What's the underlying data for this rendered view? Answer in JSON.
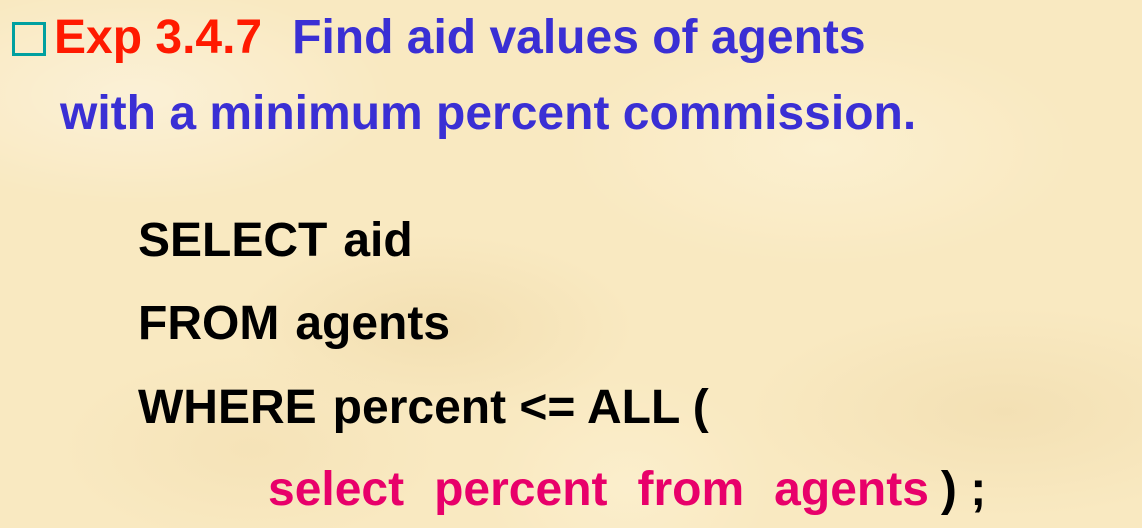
{
  "title": {
    "label": "Exp 3.4.7",
    "line1": "Find aid values of agents",
    "line2": "with a minimum percent commission."
  },
  "sql": {
    "line1_keyword": "SELECT",
    "line1_rest": "aid",
    "line2_keyword": "FROM",
    "line2_rest": "agents",
    "line3_keyword": "WHERE",
    "line3_rest": "percent <= ALL (",
    "subquery_select": "select",
    "subquery_percent": "percent",
    "subquery_from": "from",
    "subquery_agents": "agents",
    "closing": ") ;"
  },
  "colors": {
    "background": "#f9e9c1",
    "bullet": "#00a0a0",
    "label": "#ff1a00",
    "title": "#3a2fd4",
    "code": "#000000",
    "subquery": "#e8006a"
  }
}
